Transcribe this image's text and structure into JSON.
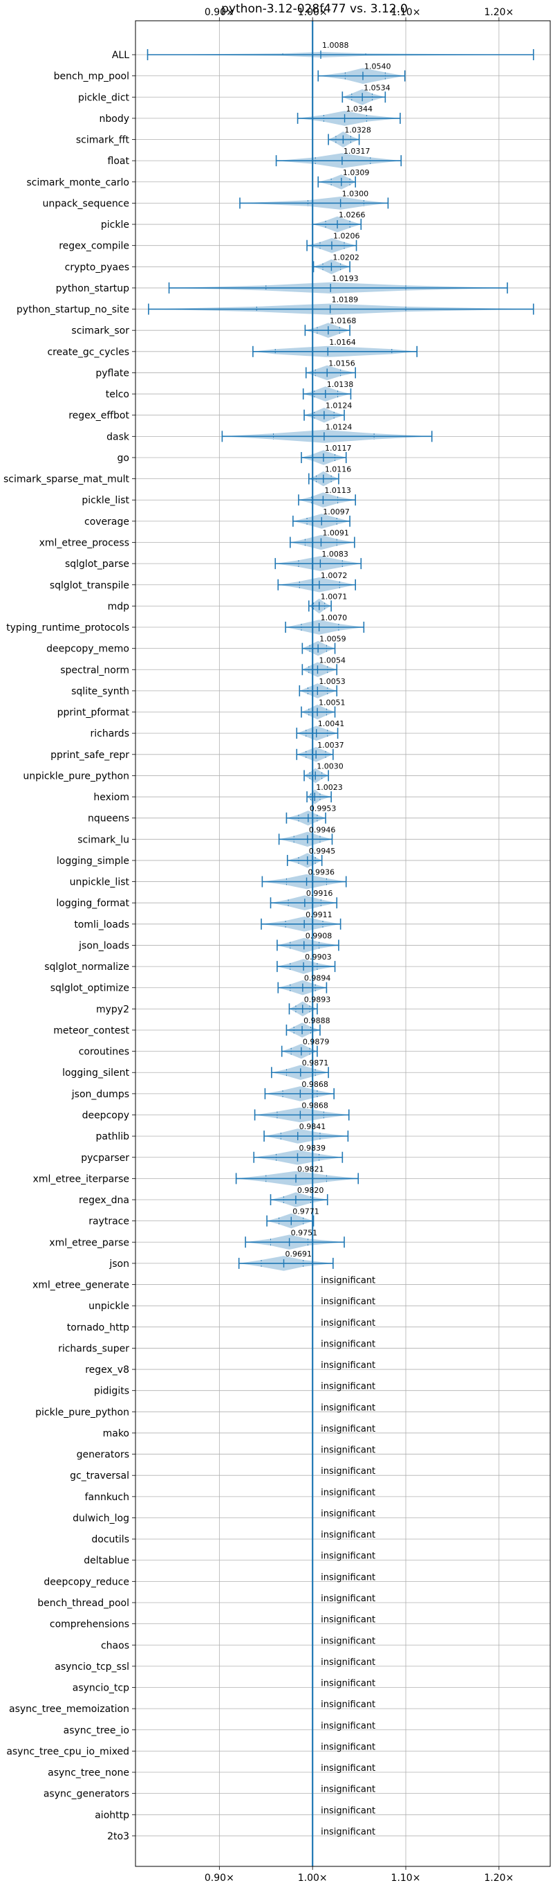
{
  "chart_data": {
    "type": "violin",
    "title": "python-3.12-028f477 vs. 3.12.0",
    "xlabel": "",
    "ylabel": "",
    "xlim": [
      0.81,
      1.255
    ],
    "xticks": [
      0.9,
      1.0,
      1.1,
      1.2
    ],
    "xtick_labels": [
      "0.90×",
      "1.00×",
      "1.10×",
      "1.20×"
    ],
    "grid": true,
    "colors": {
      "line": "#1f77b4",
      "violin": "#1f77b4",
      "grid": "#b0b0b0"
    },
    "insignificant_label": "insignificant",
    "benchmarks": [
      {
        "name": "ALL",
        "median": 1.0088,
        "min": 0.823,
        "max": 1.237,
        "label": "1.0088",
        "q1": 0.968,
        "q3": 1.057,
        "width": 0.3
      },
      {
        "name": "bench_mp_pool",
        "median": 1.054,
        "min": 1.006,
        "max": 1.099,
        "label": "1.0540",
        "q1": 1.035,
        "q3": 1.078,
        "width": 0.85
      },
      {
        "name": "pickle_dict",
        "median": 1.0534,
        "min": 1.032,
        "max": 1.078,
        "label": "1.0534",
        "q1": 1.042,
        "q3": 1.064,
        "width": 0.85
      },
      {
        "name": "nbody",
        "median": 1.0344,
        "min": 0.984,
        "max": 1.094,
        "label": "1.0344",
        "q1": 1.012,
        "q3": 1.058,
        "width": 0.8
      },
      {
        "name": "scimark_fft",
        "median": 1.0328,
        "min": 1.017,
        "max": 1.05,
        "label": "1.0328",
        "q1": 1.025,
        "q3": 1.041,
        "width": 0.85
      },
      {
        "name": "float",
        "median": 1.0317,
        "min": 0.961,
        "max": 1.095,
        "label": "1.0317",
        "q1": 1.003,
        "q3": 1.062,
        "width": 0.8
      },
      {
        "name": "scimark_monte_carlo",
        "median": 1.0309,
        "min": 1.006,
        "max": 1.046,
        "label": "1.0309",
        "q1": 1.02,
        "q3": 1.04,
        "width": 0.8
      },
      {
        "name": "unpack_sequence",
        "median": 1.03,
        "min": 0.922,
        "max": 1.081,
        "label": "1.0300",
        "q1": 0.995,
        "q3": 1.055,
        "width": 0.7
      },
      {
        "name": "pickle",
        "median": 1.0266,
        "min": 1.0,
        "max": 1.052,
        "label": "1.0266",
        "q1": 1.014,
        "q3": 1.04,
        "width": 0.85
      },
      {
        "name": "regex_compile",
        "median": 1.0206,
        "min": 0.994,
        "max": 1.047,
        "label": "1.0206",
        "q1": 1.008,
        "q3": 1.034,
        "width": 0.8
      },
      {
        "name": "crypto_pyaes",
        "median": 1.0202,
        "min": 1.001,
        "max": 1.04,
        "label": "1.0202",
        "q1": 1.011,
        "q3": 1.03,
        "width": 0.8
      },
      {
        "name": "python_startup",
        "median": 1.0193,
        "min": 0.846,
        "max": 1.209,
        "label": "1.0193",
        "q1": 0.95,
        "q3": 1.1,
        "width": 0.6
      },
      {
        "name": "python_startup_no_site",
        "median": 1.0189,
        "min": 0.824,
        "max": 1.237,
        "label": "1.0189",
        "q1": 0.94,
        "q3": 1.1,
        "width": 0.6
      },
      {
        "name": "scimark_sor",
        "median": 1.0168,
        "min": 0.992,
        "max": 1.04,
        "label": "1.0168",
        "q1": 1.005,
        "q3": 1.029,
        "width": 0.8
      },
      {
        "name": "create_gc_cycles",
        "median": 1.0164,
        "min": 0.936,
        "max": 1.112,
        "label": "1.0164",
        "q1": 0.96,
        "q3": 1.085,
        "width": 0.6
      },
      {
        "name": "pyflate",
        "median": 1.0156,
        "min": 0.993,
        "max": 1.046,
        "label": "1.0156",
        "q1": 1.003,
        "q3": 1.03,
        "width": 0.8
      },
      {
        "name": "telco",
        "median": 1.0138,
        "min": 0.99,
        "max": 1.041,
        "label": "1.0138",
        "q1": 1.002,
        "q3": 1.027,
        "width": 0.8
      },
      {
        "name": "regex_effbot",
        "median": 1.0124,
        "min": 0.991,
        "max": 1.034,
        "label": "1.0124",
        "q1": 1.002,
        "q3": 1.023,
        "width": 0.8
      },
      {
        "name": "dask",
        "median": 1.0124,
        "min": 0.903,
        "max": 1.128,
        "label": "1.0124",
        "q1": 0.958,
        "q3": 1.066,
        "width": 0.7
      },
      {
        "name": "go",
        "median": 1.0117,
        "min": 0.988,
        "max": 1.036,
        "label": "1.0117",
        "q1": 1.0,
        "q3": 1.024,
        "width": 0.8
      },
      {
        "name": "scimark_sparse_mat_mult",
        "median": 1.0116,
        "min": 0.996,
        "max": 1.028,
        "label": "1.0116",
        "q1": 1.004,
        "q3": 1.02,
        "width": 0.8
      },
      {
        "name": "pickle_list",
        "median": 1.0113,
        "min": 0.985,
        "max": 1.046,
        "label": "1.0113",
        "q1": 0.999,
        "q3": 1.027,
        "width": 0.8
      },
      {
        "name": "coverage",
        "median": 1.0097,
        "min": 0.979,
        "max": 1.04,
        "label": "1.0097",
        "q1": 0.994,
        "q3": 1.026,
        "width": 0.8
      },
      {
        "name": "xml_etree_process",
        "median": 1.0091,
        "min": 0.976,
        "max": 1.045,
        "label": "1.0091",
        "q1": 0.992,
        "q3": 1.026,
        "width": 0.8
      },
      {
        "name": "sqlglot_parse",
        "median": 1.0083,
        "min": 0.96,
        "max": 1.052,
        "label": "1.0083",
        "q1": 0.985,
        "q3": 1.032,
        "width": 0.8
      },
      {
        "name": "sqlglot_transpile",
        "median": 1.0072,
        "min": 0.963,
        "max": 1.046,
        "label": "1.0072",
        "q1": 0.986,
        "q3": 1.029,
        "width": 0.8
      },
      {
        "name": "mdp",
        "median": 1.0071,
        "min": 0.996,
        "max": 1.02,
        "label": "1.0071",
        "q1": 1.001,
        "q3": 1.013,
        "width": 0.8
      },
      {
        "name": "typing_runtime_protocols",
        "median": 1.007,
        "min": 0.971,
        "max": 1.055,
        "label": "1.0070",
        "q1": 0.988,
        "q3": 1.028,
        "width": 0.8
      },
      {
        "name": "deepcopy_memo",
        "median": 1.0059,
        "min": 0.989,
        "max": 1.024,
        "label": "1.0059",
        "q1": 0.997,
        "q3": 1.015,
        "width": 0.8
      },
      {
        "name": "spectral_norm",
        "median": 1.0054,
        "min": 0.989,
        "max": 1.026,
        "label": "1.0054",
        "q1": 0.996,
        "q3": 1.016,
        "width": 0.8
      },
      {
        "name": "sqlite_synth",
        "median": 1.0053,
        "min": 0.986,
        "max": 1.026,
        "label": "1.0053",
        "q1": 0.995,
        "q3": 1.016,
        "width": 0.8
      },
      {
        "name": "pprint_pformat",
        "median": 1.0051,
        "min": 0.988,
        "max": 1.024,
        "label": "1.0051",
        "q1": 0.996,
        "q3": 1.015,
        "width": 0.8
      },
      {
        "name": "richards",
        "median": 1.0041,
        "min": 0.983,
        "max": 1.027,
        "label": "1.0041",
        "q1": 0.993,
        "q3": 1.016,
        "width": 0.8
      },
      {
        "name": "pprint_safe_repr",
        "median": 1.0037,
        "min": 0.983,
        "max": 1.022,
        "label": "1.0037",
        "q1": 0.993,
        "q3": 1.014,
        "width": 0.8
      },
      {
        "name": "unpickle_pure_python",
        "median": 1.003,
        "min": 0.991,
        "max": 1.017,
        "label": "1.0030",
        "q1": 0.997,
        "q3": 1.01,
        "width": 0.8
      },
      {
        "name": "hexiom",
        "median": 1.0023,
        "min": 0.994,
        "max": 1.02,
        "label": "1.0023",
        "q1": 0.998,
        "q3": 1.008,
        "width": 0.8
      },
      {
        "name": "nqueens",
        "median": 0.9953,
        "min": 0.972,
        "max": 1.014,
        "label": "0.9953",
        "q1": 0.985,
        "q3": 1.005,
        "width": 0.8
      },
      {
        "name": "scimark_lu",
        "median": 0.9946,
        "min": 0.964,
        "max": 1.021,
        "label": "0.9946",
        "q1": 0.98,
        "q3": 1.008,
        "width": 0.8
      },
      {
        "name": "logging_simple",
        "median": 0.9945,
        "min": 0.973,
        "max": 1.01,
        "label": "0.9945",
        "q1": 0.985,
        "q3": 1.003,
        "width": 0.8
      },
      {
        "name": "unpickle_list",
        "median": 0.9936,
        "min": 0.946,
        "max": 1.036,
        "label": "0.9936",
        "q1": 0.972,
        "q3": 1.015,
        "width": 0.8
      },
      {
        "name": "logging_format",
        "median": 0.9916,
        "min": 0.955,
        "max": 1.026,
        "label": "0.9916",
        "q1": 0.974,
        "q3": 1.009,
        "width": 0.8
      },
      {
        "name": "tomli_loads",
        "median": 0.9911,
        "min": 0.945,
        "max": 1.03,
        "label": "0.9911",
        "q1": 0.971,
        "q3": 1.011,
        "width": 0.8
      },
      {
        "name": "json_loads",
        "median": 0.9908,
        "min": 0.962,
        "max": 1.028,
        "label": "0.9908",
        "q1": 0.976,
        "q3": 1.007,
        "width": 0.8
      },
      {
        "name": "sqlglot_normalize",
        "median": 0.9903,
        "min": 0.962,
        "max": 1.024,
        "label": "0.9903",
        "q1": 0.976,
        "q3": 1.005,
        "width": 0.8
      },
      {
        "name": "sqlglot_optimize",
        "median": 0.9894,
        "min": 0.963,
        "max": 1.015,
        "label": "0.9894",
        "q1": 0.976,
        "q3": 1.003,
        "width": 0.8
      },
      {
        "name": "mypy2",
        "median": 0.9893,
        "min": 0.975,
        "max": 1.005,
        "label": "0.9893",
        "q1": 0.982,
        "q3": 0.997,
        "width": 0.8
      },
      {
        "name": "meteor_contest",
        "median": 0.9888,
        "min": 0.972,
        "max": 1.008,
        "label": "0.9888",
        "q1": 0.98,
        "q3": 0.998,
        "width": 0.8
      },
      {
        "name": "coroutines",
        "median": 0.9879,
        "min": 0.967,
        "max": 1.005,
        "label": "0.9879",
        "q1": 0.977,
        "q3": 0.997,
        "width": 0.8
      },
      {
        "name": "logging_silent",
        "median": 0.9871,
        "min": 0.956,
        "max": 1.017,
        "label": "0.9871",
        "q1": 0.972,
        "q3": 1.003,
        "width": 0.8
      },
      {
        "name": "json_dumps",
        "median": 0.9868,
        "min": 0.949,
        "max": 1.023,
        "label": "0.9868",
        "q1": 0.968,
        "q3": 1.005,
        "width": 0.8
      },
      {
        "name": "deepcopy",
        "median": 0.9868,
        "min": 0.938,
        "max": 1.039,
        "label": "0.9868",
        "q1": 0.962,
        "q3": 1.012,
        "width": 0.8
      },
      {
        "name": "pathlib",
        "median": 0.9841,
        "min": 0.948,
        "max": 1.038,
        "label": "0.9841",
        "q1": 0.966,
        "q3": 1.008,
        "width": 0.8
      },
      {
        "name": "pycparser",
        "median": 0.9839,
        "min": 0.937,
        "max": 1.032,
        "label": "0.9839",
        "q1": 0.961,
        "q3": 1.007,
        "width": 0.8
      },
      {
        "name": "xml_etree_iterparse",
        "median": 0.9821,
        "min": 0.918,
        "max": 1.049,
        "label": "0.9821",
        "q1": 0.95,
        "q3": 1.015,
        "width": 0.8
      },
      {
        "name": "regex_dna",
        "median": 0.982,
        "min": 0.955,
        "max": 1.016,
        "label": "0.9820",
        "q1": 0.969,
        "q3": 0.998,
        "width": 0.8
      },
      {
        "name": "raytrace",
        "median": 0.9771,
        "min": 0.951,
        "max": 1.001,
        "label": "0.9771",
        "q1": 0.964,
        "q3": 0.99,
        "width": 0.8
      },
      {
        "name": "xml_etree_parse",
        "median": 0.9751,
        "min": 0.928,
        "max": 1.034,
        "label": "0.9751",
        "q1": 0.955,
        "q3": 0.995,
        "width": 0.8
      },
      {
        "name": "json",
        "median": 0.9691,
        "min": 0.921,
        "max": 1.022,
        "label": "0.9691",
        "q1": 0.945,
        "q3": 0.99,
        "width": 0.8
      },
      {
        "name": "xml_etree_generate",
        "insignificant": true
      },
      {
        "name": "unpickle",
        "insignificant": true
      },
      {
        "name": "tornado_http",
        "insignificant": true
      },
      {
        "name": "richards_super",
        "insignificant": true
      },
      {
        "name": "regex_v8",
        "insignificant": true
      },
      {
        "name": "pidigits",
        "insignificant": true
      },
      {
        "name": "pickle_pure_python",
        "insignificant": true
      },
      {
        "name": "mako",
        "insignificant": true
      },
      {
        "name": "generators",
        "insignificant": true
      },
      {
        "name": "gc_traversal",
        "insignificant": true
      },
      {
        "name": "fannkuch",
        "insignificant": true
      },
      {
        "name": "dulwich_log",
        "insignificant": true
      },
      {
        "name": "docutils",
        "insignificant": true
      },
      {
        "name": "deltablue",
        "insignificant": true
      },
      {
        "name": "deepcopy_reduce",
        "insignificant": true
      },
      {
        "name": "bench_thread_pool",
        "insignificant": true
      },
      {
        "name": "comprehensions",
        "insignificant": true
      },
      {
        "name": "chaos",
        "insignificant": true
      },
      {
        "name": "asyncio_tcp_ssl",
        "insignificant": true
      },
      {
        "name": "asyncio_tcp",
        "insignificant": true
      },
      {
        "name": "async_tree_memoization",
        "insignificant": true
      },
      {
        "name": "async_tree_io",
        "insignificant": true
      },
      {
        "name": "async_tree_cpu_io_mixed",
        "insignificant": true
      },
      {
        "name": "async_tree_none",
        "insignificant": true
      },
      {
        "name": "async_generators",
        "insignificant": true
      },
      {
        "name": "aiohttp",
        "insignificant": true
      },
      {
        "name": "2to3",
        "insignificant": true
      }
    ]
  }
}
